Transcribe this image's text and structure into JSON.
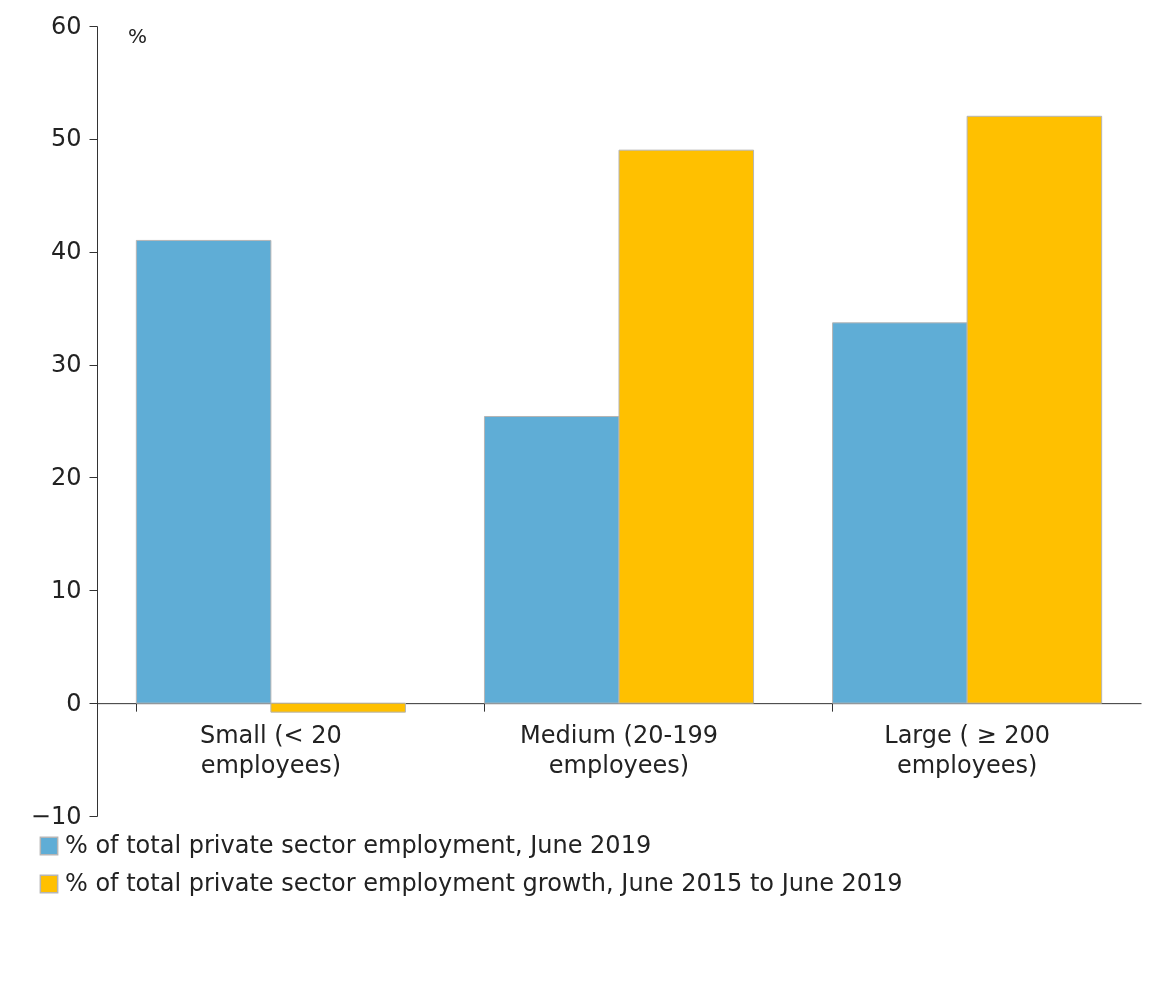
{
  "chart_data": {
    "type": "bar",
    "ylabel": "%",
    "categories": [
      "Small (< 20 employees)",
      "Medium (20-199 employees)",
      "Large ( ≥ 200 employees)"
    ],
    "series": [
      {
        "name": "% of total private sector employment, June 2019",
        "color": "#5fadd6",
        "values": [
          41.0,
          25.4,
          33.7
        ]
      },
      {
        "name": "% of total private sector employment growth, June 2015 to June 2019",
        "color": "#ffc000",
        "values": [
          -0.8,
          49.0,
          52.0
        ]
      }
    ],
    "ylim": [
      -10,
      60
    ],
    "yticks": [
      -10,
      0,
      10,
      20,
      30,
      40,
      50,
      60
    ],
    "grid": false,
    "legend": "bottom"
  }
}
